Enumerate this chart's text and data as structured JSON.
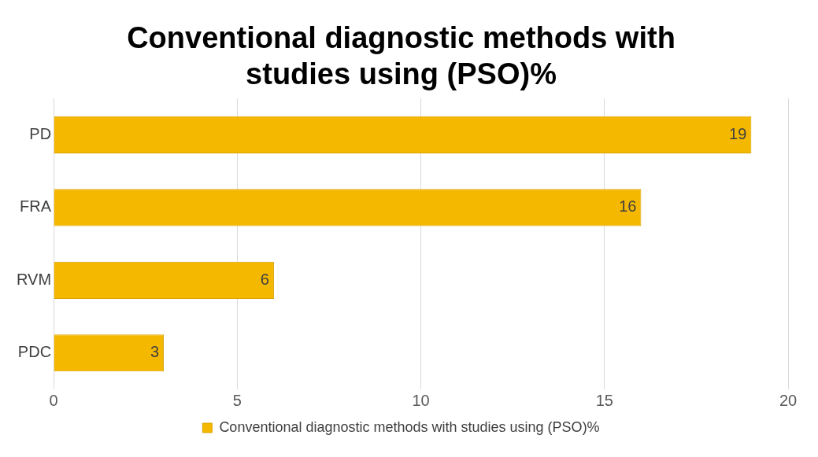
{
  "chart_data": {
    "type": "bar",
    "orientation": "horizontal",
    "title": "Conventional diagnostic methods with studies using (PSO)%",
    "categories": [
      "PD",
      "FRA",
      "RVM",
      "PDC"
    ],
    "series": [
      {
        "name": "Conventional diagnostic methods with studies using (PSO)%",
        "color": "#f5b800",
        "values": [
          19,
          16,
          6,
          3
        ]
      }
    ],
    "xlim": [
      0,
      20
    ],
    "xticks": [
      0,
      5,
      10,
      15,
      20
    ],
    "grid": "x",
    "legend": "bottom",
    "data_labels": true
  }
}
